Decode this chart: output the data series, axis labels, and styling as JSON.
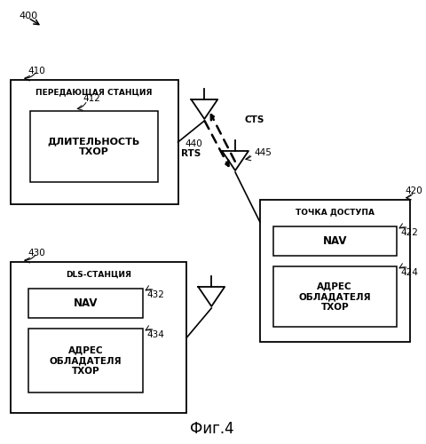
{
  "title": "Фиг.4",
  "label_400": "400",
  "label_410": "410",
  "label_412": "412",
  "label_420": "420",
  "label_422": "422",
  "label_424": "424",
  "label_430": "430",
  "label_432": "432",
  "label_434": "434",
  "label_440": "440",
  "label_445": "445",
  "label_CTS": "CTS",
  "label_RTS": "RTS",
  "box410_title": "ПЕРЕДАЮЩАЯ СТАНЦИЯ",
  "box410_inner": "ДЛИТЕЛЬНОСТЬ\nТХОР",
  "box420_title": "ТОЧКА ДОСТУПА",
  "box420_inner1": "NAV",
  "box420_inner2": "АДРЕС\nОБЛАДАТЕЛЯ\nТХОР",
  "box430_title": "DLS-СТАНЦИЯ",
  "box430_inner1": "NAV",
  "box430_inner2": "АДРЕС\nОБЛАДАТЕЛЯ\nТХОР",
  "bg_color": "#ffffff",
  "text_color": "#000000"
}
